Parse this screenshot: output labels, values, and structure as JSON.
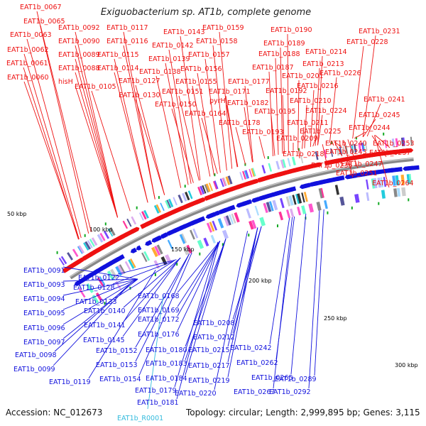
{
  "title": "Exiguobacterium sp. AT1b, complete genome",
  "accession": "Accession: NC_012673",
  "topology": "Topology: circular; Length: 2,999,895 bp; Genes: 3,115",
  "colors": {
    "forward": "#ee1111",
    "reverse": "#1111dd",
    "rna": "#33bbdd",
    "backbone": "#888888",
    "marker": "#11aa22"
  },
  "ticks": [
    "50 kbp",
    "100 kbp",
    "150 kbp",
    "200 kbp",
    "250 kbp",
    "300 kbp"
  ],
  "top_labels": [
    "EAT1b_0067",
    "EAT1b_0065",
    "EAT1b_0063",
    "EAT1b_0062",
    "EAT1b_0061",
    "EAT1b_0060",
    "EAT1b_0092",
    "EAT1b_0090",
    "EAT1b_0089",
    "EAT1b_0088",
    "hisH",
    "EAT1b_0117",
    "EAT1b_0116",
    "EAT1b_0115",
    "EAT1b_0114",
    "EAT1b_0105",
    "EAT1b_0143",
    "EAT1b_0142",
    "EAT1b_0139",
    "EAT1b_0138",
    "EAT1b_0127",
    "EAT1b_0130",
    "EAT1b_0159",
    "EAT1b_0158",
    "EAT1b_0157",
    "EAT1b_0156",
    "EAT1b_0155",
    "EAT1b_0151",
    "EAT1b_0150",
    "EAT1b_0177",
    "EAT1b_0171",
    "pyrH",
    "EAT1b_0164",
    "EAT1b_0190",
    "EAT1b_0189",
    "EAT1b_0188",
    "EAT1b_0187",
    "EAT1b_0201",
    "EAT1b_0192",
    "EAT1b_0182",
    "EAT1b_0178",
    "EAT1b_0214",
    "EAT1b_0213",
    "EAT1b_0226",
    "EAT1b_0216",
    "EAT1b_0210",
    "EAT1b_0195",
    "EAT1b_0211",
    "EAT1b_0193",
    "EAT1b_0231",
    "EAT1b_0228",
    "EAT1b_0241",
    "EAT1b_0224",
    "EAT1b_0245",
    "EAT1b_0225",
    "EAT1b_0244",
    "EAT1b_0209",
    "EAT1b_0240",
    "EAT1b_0253",
    "EAT1b_0243",
    "EAT1b_0257",
    "EAT1b_0218",
    "EAT1b_0247",
    "EAT1b_0235",
    "EAT1b_0251",
    "EAT1b_0264"
  ],
  "bottom_labels": [
    "EAT1b_0091",
    "EAT1b_0093",
    "EAT1b_0094",
    "EAT1b_0095",
    "EAT1b_0096",
    "EAT1b_0097",
    "EAT1b_0098",
    "EAT1b_0099",
    "EAT1b_0119",
    "EAT1b_0122",
    "EAT1b_0128",
    "EAT1b_0133",
    "EAT1b_0140",
    "EAT1b_0141",
    "EAT1b_0145",
    "EAT1b_0152",
    "EAT1b_0153",
    "EAT1b_0154",
    "EAT1b_0168",
    "EAT1b_0169",
    "EAT1b_0172",
    "EAT1b_0176",
    "EAT1b_0180",
    "EAT1b_0183",
    "EAT1b_0184",
    "EAT1b_0179",
    "EAT1b_0181",
    "EAT1b_0208",
    "EAT1b_0212",
    "EAT1b_0215",
    "EAT1b_0217",
    "EAT1b_0219",
    "EAT1b_0220",
    "EAT1b_0242",
    "EAT1b_0262",
    "EAT1b_0265",
    "EAT1b_0267",
    "EAT1b_0289",
    "EAT1b_0292"
  ],
  "rna_label": "EAT1b_R0001"
}
